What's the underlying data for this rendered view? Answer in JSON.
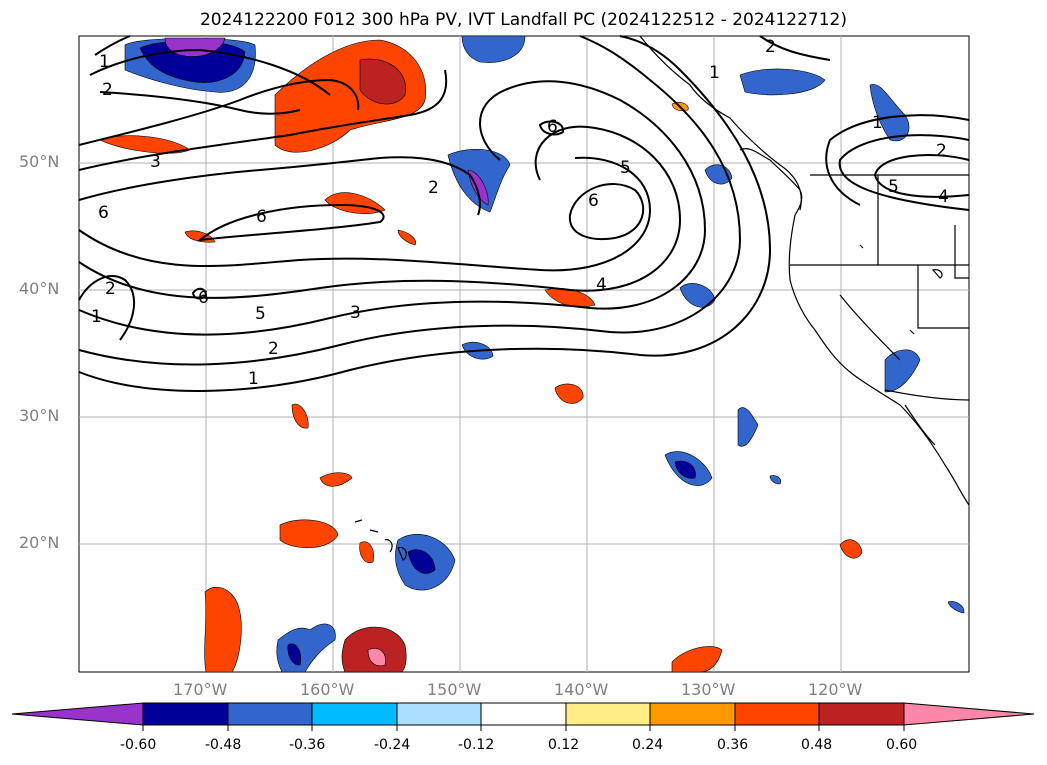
{
  "title": "2024122200 F012 300 hPa PV, IVT Landfall PC (2024122512 - 2024122712)",
  "lat_labels": [
    "50°N",
    "40°N",
    "30°N",
    "20°N"
  ],
  "lon_labels": [
    "170°W",
    "160°W",
    "150°W",
    "140°W",
    "130°W",
    "120°W"
  ],
  "contour_labels": [
    "1",
    "2",
    "3",
    "4",
    "5",
    "6"
  ],
  "colorbar": {
    "ticks": [
      "-0.60",
      "-0.48",
      "-0.36",
      "-0.24",
      "-0.12",
      "0.12",
      "0.24",
      "0.36",
      "0.48",
      "0.60"
    ],
    "colors": [
      "#9933cc",
      "#000099",
      "#3366cc",
      "#00bbff",
      "#aaddff",
      "#ffffff",
      "#ffee88",
      "#ff9900",
      "#ff4400",
      "#bb2222",
      "#ff88aa"
    ]
  }
}
